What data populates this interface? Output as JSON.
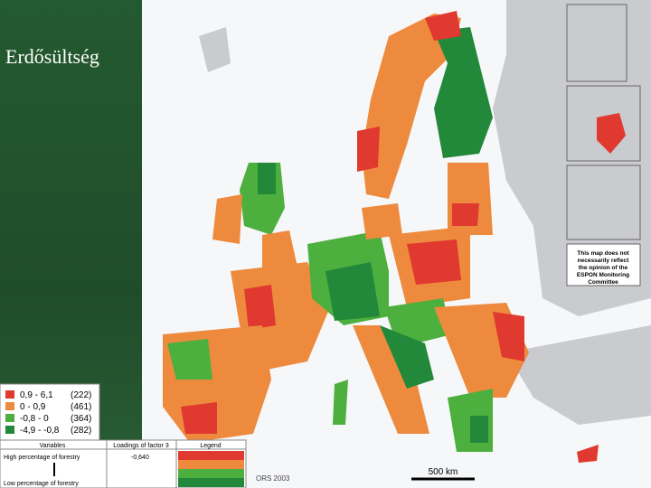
{
  "title": "Erdősültség",
  "legend": {
    "items": [
      {
        "range": "0,9 - 6,1",
        "count": "(222)",
        "color": "#e0392f"
      },
      {
        "range": "0 - 0,9",
        "count": "(461)",
        "color": "#ee8a3d"
      },
      {
        "range": "-0,8 - 0",
        "count": "(364)",
        "color": "#4caf3e"
      },
      {
        "range": "-4,9 - -0,8",
        "count": "(282)",
        "color": "#22893a"
      }
    ]
  },
  "table": {
    "headers": [
      "Variables",
      "Loadings of factor 3",
      "Legend"
    ],
    "rows": [
      [
        "High percentage of forestry",
        "-0,640"
      ],
      [
        "Low percentage of forestry"
      ]
    ]
  },
  "note": "This map does not necessarily reflect the opinion of the ESPON Monitoring Committee",
  "scale": "500 km",
  "credit": "ORS 2003"
}
